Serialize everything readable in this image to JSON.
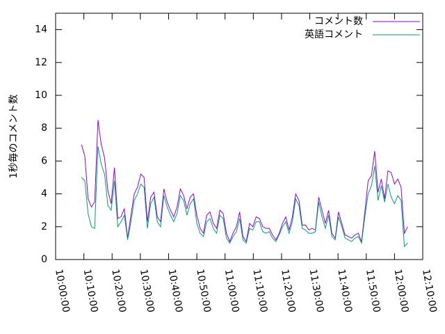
{
  "chart_data": {
    "type": "line",
    "ylabel": "1秒毎のコメント数",
    "x": [
      "10:09:10",
      "10:10:20",
      "10:11:30",
      "10:12:40",
      "10:13:50",
      "10:15:00",
      "10:16:10",
      "10:17:20",
      "10:18:30",
      "10:19:40",
      "10:20:50",
      "10:22:00",
      "10:23:10",
      "10:24:20",
      "10:25:30",
      "10:26:40",
      "10:27:50",
      "10:29:00",
      "10:30:10",
      "10:31:20",
      "10:32:30",
      "10:33:40",
      "10:34:50",
      "10:36:00",
      "10:37:10",
      "10:38:20",
      "10:39:30",
      "10:40:40",
      "10:41:50",
      "10:43:00",
      "10:44:10",
      "10:45:20",
      "10:46:30",
      "10:47:40",
      "10:48:50",
      "10:50:00",
      "10:51:10",
      "10:52:20",
      "10:53:30",
      "10:54:40",
      "10:55:50",
      "10:57:00",
      "10:58:10",
      "10:59:20",
      "11:00:30",
      "11:01:40",
      "11:02:50",
      "11:04:00",
      "11:05:10",
      "11:06:20",
      "11:07:30",
      "11:08:40",
      "11:09:50",
      "11:11:00",
      "11:12:10",
      "11:13:20",
      "11:14:30",
      "11:15:40",
      "11:16:50",
      "11:18:00",
      "11:19:10",
      "11:20:20",
      "11:21:30",
      "11:22:40",
      "11:23:50",
      "11:25:00",
      "11:26:10",
      "11:27:20",
      "11:28:30",
      "11:29:40",
      "11:30:50",
      "11:32:00",
      "11:33:10",
      "11:34:20",
      "11:35:30",
      "11:36:40",
      "11:37:50",
      "11:39:00",
      "11:40:10",
      "11:41:20",
      "11:42:30",
      "11:43:40",
      "11:44:50",
      "11:46:00",
      "11:47:10",
      "11:48:20",
      "11:49:30",
      "11:50:40",
      "11:51:50",
      "11:53:00",
      "11:54:10",
      "11:55:20",
      "11:56:30",
      "11:57:40",
      "11:58:50",
      "12:00:00",
      "12:01:10",
      "12:02:20",
      "12:03:30",
      "12:04:40"
    ],
    "series": [
      {
        "name": "コメント数",
        "color": "#9400d3",
        "values": [
          7.0,
          6.3,
          3.7,
          3.2,
          3.5,
          8.5,
          7.0,
          6.2,
          4.2,
          3.4,
          5.6,
          2.5,
          2.6,
          3.1,
          1.3,
          2.7,
          4.0,
          4.4,
          5.2,
          5.0,
          2.3,
          3.8,
          4.1,
          2.6,
          2.3,
          4.3,
          3.5,
          3.0,
          2.6,
          3.2,
          4.3,
          3.9,
          3.1,
          3.8,
          4.0,
          2.7,
          1.9,
          1.6,
          2.7,
          2.9,
          2.2,
          1.9,
          3.0,
          2.8,
          1.6,
          1.1,
          1.6,
          2.0,
          2.9,
          1.4,
          1.1,
          2.2,
          2.0,
          2.6,
          2.5,
          2.0,
          1.9,
          1.9,
          1.5,
          1.2,
          1.6,
          2.2,
          2.6,
          1.8,
          2.6,
          4.0,
          3.6,
          2.1,
          2.1,
          1.8,
          1.9,
          1.8,
          3.8,
          3.0,
          2.2,
          3.0,
          1.6,
          1.3,
          2.9,
          2.2,
          1.5,
          1.4,
          1.3,
          1.5,
          1.6,
          1.1,
          2.9,
          4.8,
          5.1,
          6.6,
          4.1,
          4.9,
          3.7,
          5.4,
          5.3,
          4.6,
          4.9,
          4.4,
          1.6,
          2.0
        ]
      },
      {
        "name": "英語コメント",
        "color": "#009e73",
        "values": [
          5.0,
          4.8,
          2.8,
          2.0,
          1.9,
          6.9,
          5.8,
          5.2,
          3.3,
          3.0,
          4.8,
          2.0,
          2.3,
          2.7,
          1.2,
          2.3,
          3.6,
          4.0,
          4.6,
          4.4,
          1.9,
          3.4,
          3.8,
          2.3,
          2.0,
          3.9,
          3.2,
          2.7,
          2.3,
          2.8,
          3.9,
          3.6,
          2.7,
          3.4,
          3.7,
          2.2,
          1.6,
          1.4,
          2.3,
          2.5,
          1.9,
          1.6,
          2.7,
          2.5,
          1.3,
          1.0,
          1.4,
          1.7,
          2.5,
          1.2,
          1.0,
          1.9,
          1.8,
          2.3,
          2.3,
          1.7,
          1.6,
          1.7,
          1.3,
          1.1,
          1.5,
          2.0,
          2.3,
          1.6,
          2.3,
          3.7,
          3.3,
          1.9,
          1.8,
          1.6,
          1.6,
          1.7,
          3.5,
          2.6,
          1.9,
          2.7,
          1.4,
          1.2,
          2.6,
          2.0,
          1.3,
          1.2,
          1.1,
          1.3,
          1.4,
          1.0,
          2.6,
          4.0,
          4.5,
          5.7,
          3.6,
          4.5,
          3.5,
          4.6,
          3.8,
          3.4,
          3.9,
          3.6,
          0.8,
          1.0
        ]
      }
    ],
    "xlim": [
      "10:00:00",
      "12:10:00"
    ],
    "xticks": [
      "10:00:00",
      "10:10:00",
      "10:20:00",
      "10:30:00",
      "10:40:00",
      "10:50:00",
      "11:00:00",
      "11:10:00",
      "11:20:00",
      "11:30:00",
      "11:40:00",
      "11:50:00",
      "12:00:00",
      "12:10:00"
    ],
    "ylim": [
      0,
      15
    ],
    "yticks": [
      0,
      2,
      4,
      6,
      8,
      10,
      12,
      14
    ],
    "grid": false,
    "legend": "top-right"
  }
}
